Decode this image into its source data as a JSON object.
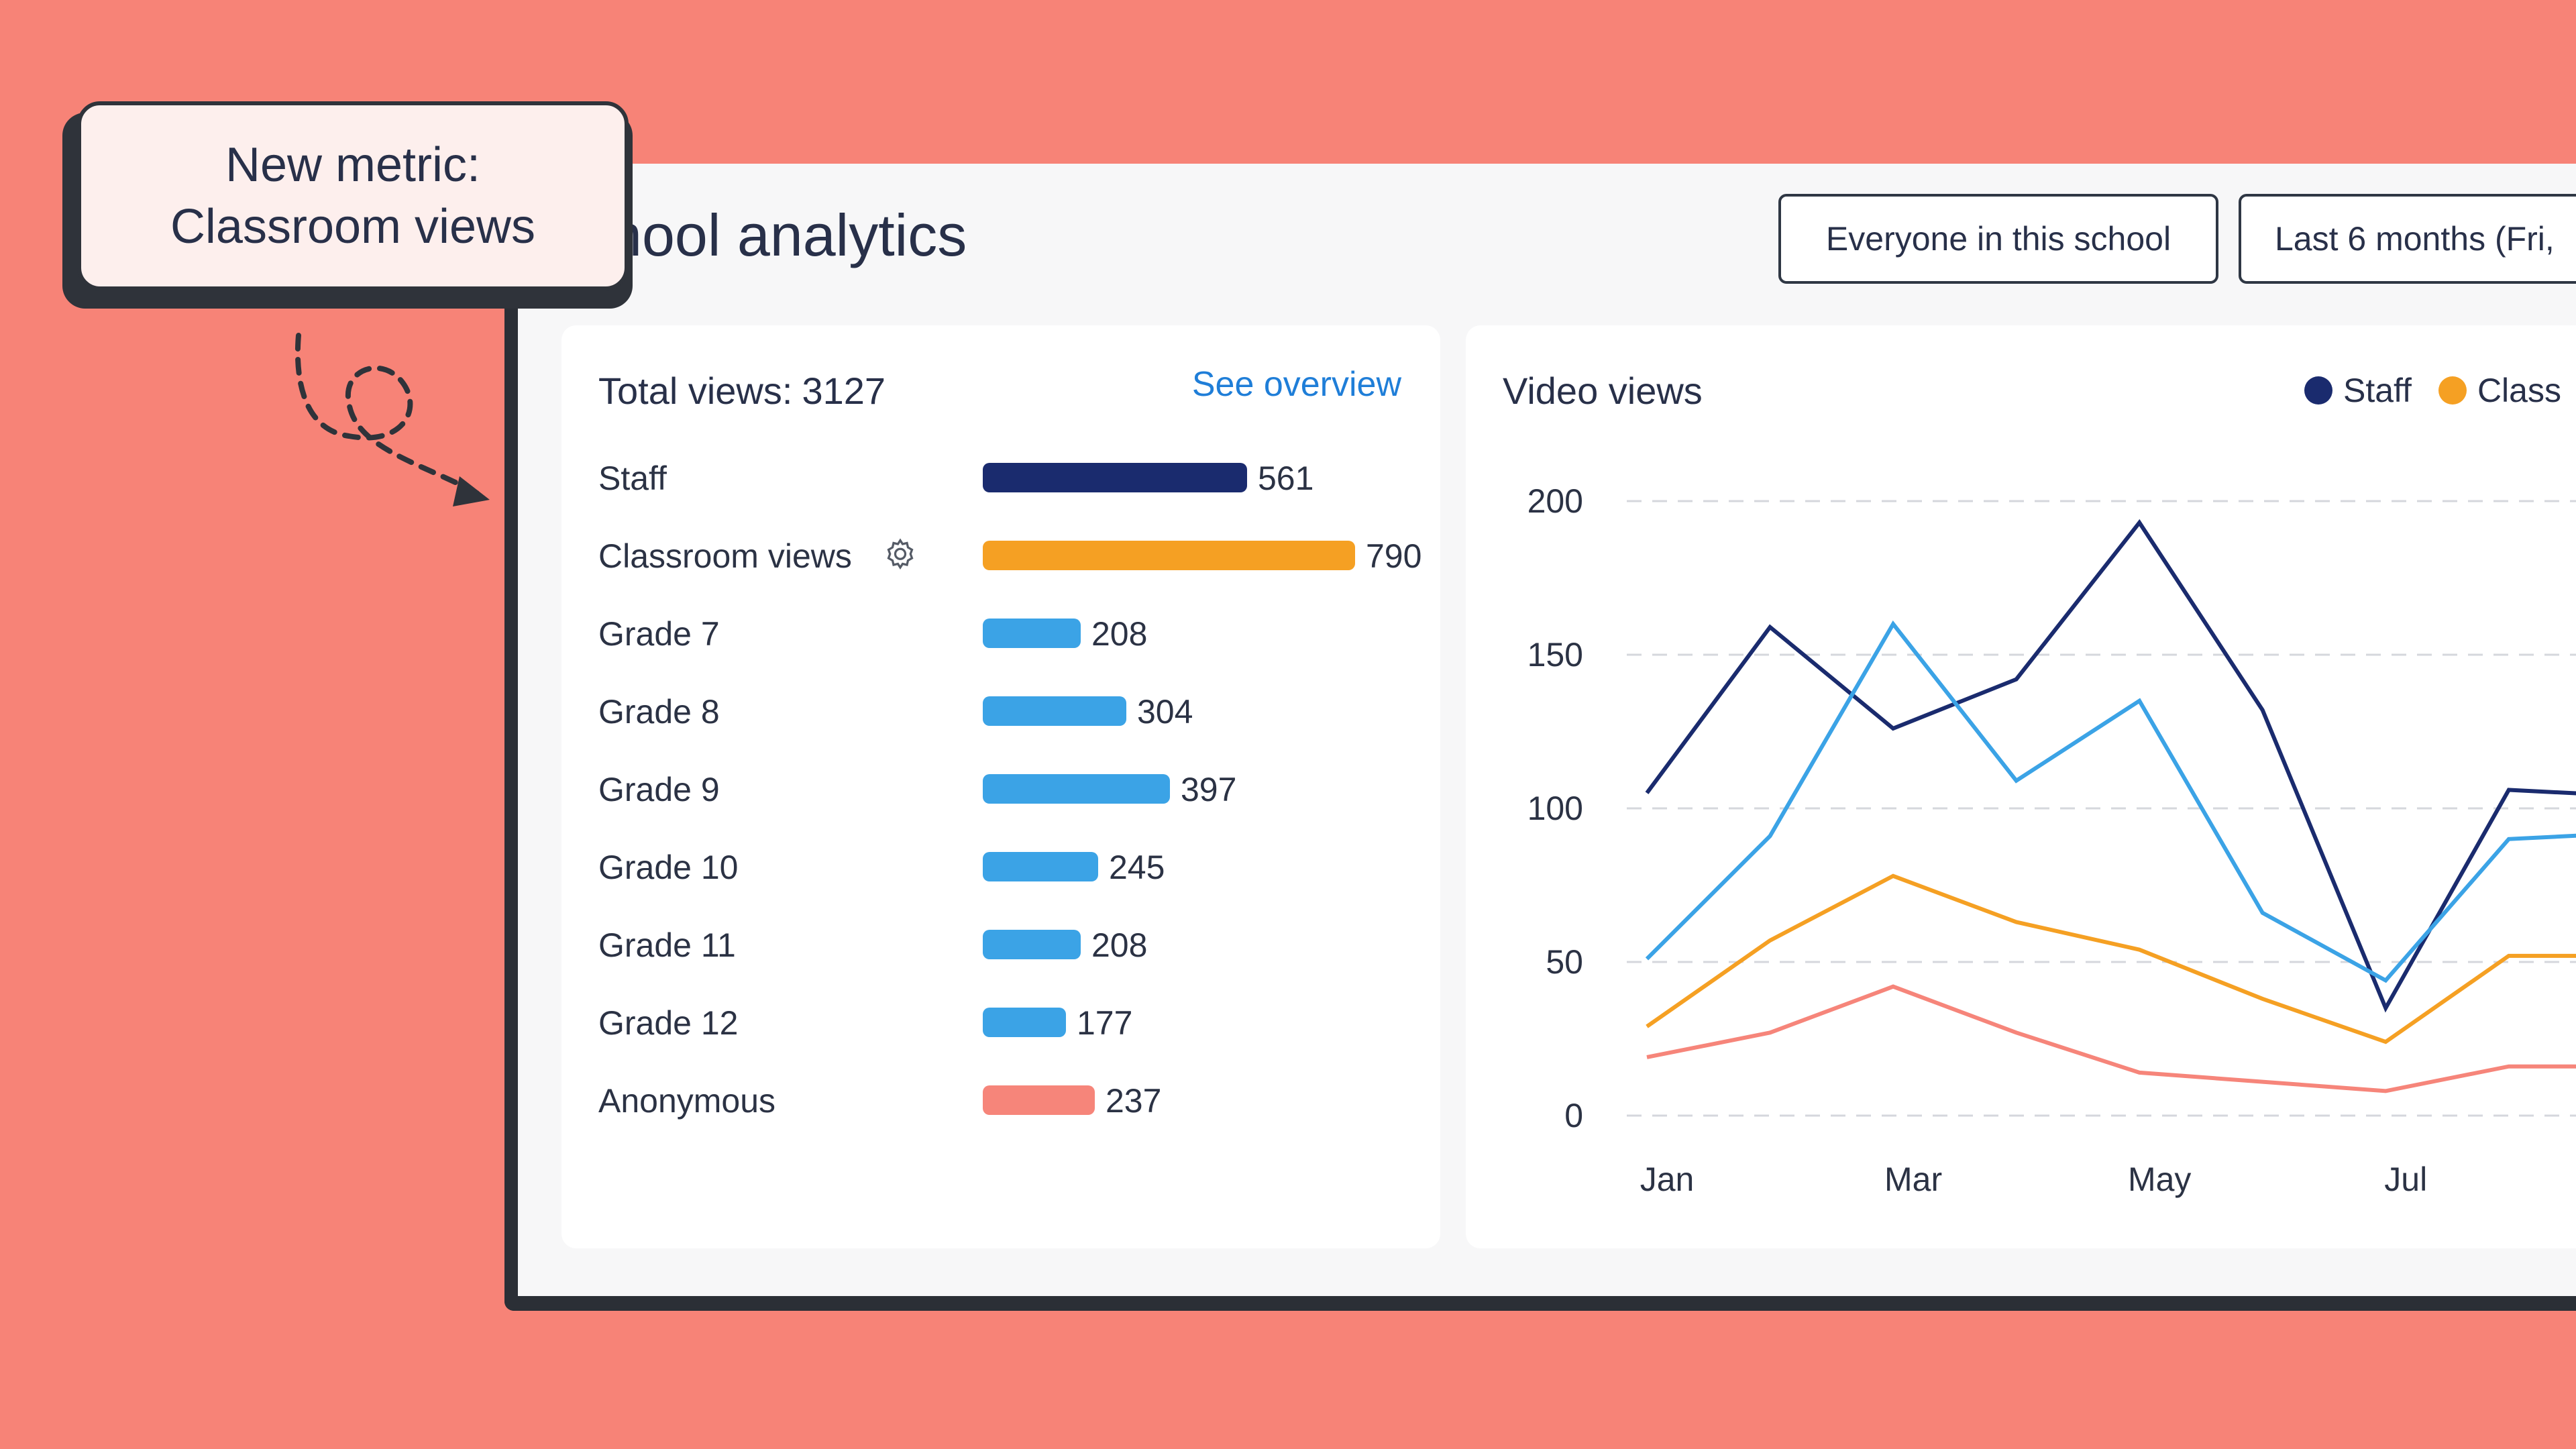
{
  "header": {
    "title": "hool analytics",
    "audience_filter": "Everyone in this school",
    "range_filter": "Last 6 months (Fri,"
  },
  "callout": {
    "line1": "New metric:",
    "line2": "Classroom views"
  },
  "summary": {
    "title": "Total views:",
    "total": "3127",
    "link": "See overview",
    "rows": [
      {
        "label": "Staff",
        "value": "561",
        "color": "#1a2b6e"
      },
      {
        "label": "Classroom views",
        "value": "790",
        "color": "#f5a023",
        "icon": "gear-icon"
      },
      {
        "label": "Grade 7",
        "value": "208",
        "color": "#3ba3e6"
      },
      {
        "label": "Grade 8",
        "value": "304",
        "color": "#3ba3e6"
      },
      {
        "label": "Grade 9",
        "value": "397",
        "color": "#3ba3e6"
      },
      {
        "label": "Grade 10",
        "value": "245",
        "color": "#3ba3e6"
      },
      {
        "label": "Grade 11",
        "value": "208",
        "color": "#3ba3e6"
      },
      {
        "label": "Grade 12",
        "value": "177",
        "color": "#3ba3e6"
      },
      {
        "label": "Anonymous",
        "value": "237",
        "color": "#f6857a"
      }
    ]
  },
  "chart_data": {
    "type": "line",
    "title": "Video views",
    "legend": [
      "Staff",
      "Class"
    ],
    "legend_colors": [
      "#1a2b6e",
      "#f5a023"
    ],
    "legend_placement": "top-right",
    "x_ticks": [
      "Jan",
      "Mar",
      "May",
      "Jul"
    ],
    "y_ticks": [
      "200",
      "150",
      "100",
      "50",
      "0"
    ],
    "ylim": [
      0,
      200
    ],
    "grid": "horizontal-dashed",
    "x": [
      1,
      2,
      3,
      4,
      5,
      6,
      7,
      8,
      9
    ],
    "xlim": [
      1,
      8.9
    ],
    "series": [
      {
        "color": "#1a2b6e",
        "values": [
          105,
          159,
          126,
          142,
          193,
          132,
          35,
          106,
          104
        ]
      },
      {
        "color": "#3ba3e6",
        "values": [
          51,
          91,
          160,
          109,
          135,
          66,
          44,
          90,
          92
        ]
      },
      {
        "color": "#f5a023",
        "values": [
          29,
          57,
          78,
          63,
          54,
          38,
          24,
          52,
          52
        ]
      },
      {
        "color": "#f6857a",
        "values": [
          19,
          27,
          42,
          27,
          14,
          11,
          8,
          16,
          16
        ]
      }
    ]
  }
}
